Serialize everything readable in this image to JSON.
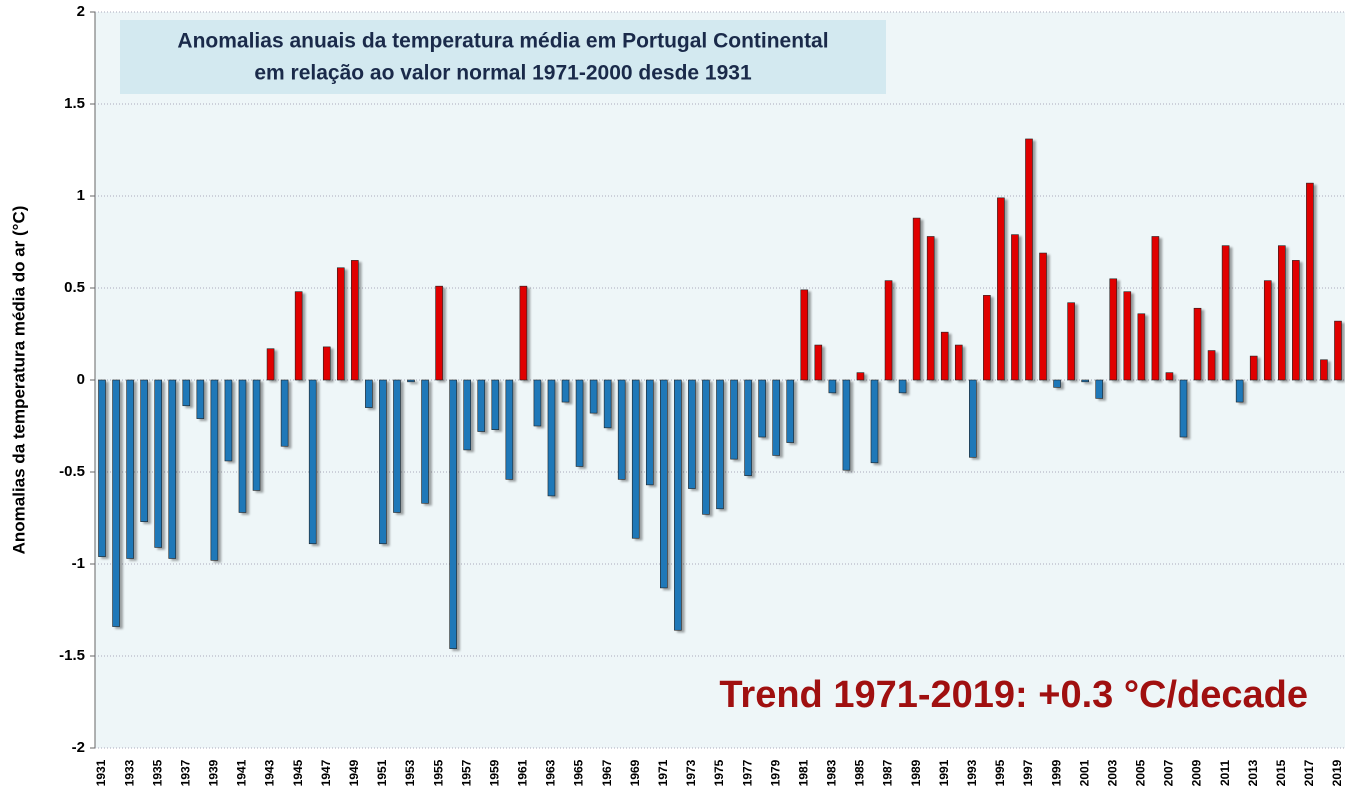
{
  "chart_data": {
    "type": "bar",
    "title": [
      "Anomalias anuais da temperatura média em Portugal Continental",
      "em relação ao valor normal 1971-2000 desde 1931"
    ],
    "y_label": "Anomalias da temperatura média do ar (°C)",
    "annotation": "Trend 1971-2019: +0.3 °C/decade",
    "categories": [
      "1931",
      null,
      "1933",
      null,
      "1935",
      null,
      "1937",
      null,
      "1939",
      null,
      "1941",
      null,
      "1943",
      null,
      "1945",
      null,
      "1947",
      null,
      "1949",
      null,
      "1951",
      null,
      "1953",
      null,
      "1955",
      null,
      "1957",
      null,
      "1959",
      null,
      "1961",
      null,
      "1963",
      null,
      "1965",
      null,
      "1967",
      null,
      "1969",
      null,
      "1971",
      null,
      "1973",
      null,
      "1975",
      null,
      "1977",
      null,
      "1979",
      null,
      "1981",
      null,
      "1983",
      null,
      "1985",
      null,
      "1987",
      null,
      "1989",
      null,
      "1991",
      null,
      "1993",
      null,
      "1995",
      null,
      "1997",
      null,
      "1999",
      null,
      "2001",
      null,
      "2003",
      null,
      "2005",
      null,
      "2007",
      null,
      "2009",
      null,
      "2011",
      null,
      "2013",
      null,
      "2015",
      null,
      "2017",
      null,
      "2019"
    ],
    "values": [
      -0.96,
      -1.34,
      -0.97,
      -0.77,
      -0.91,
      -0.97,
      -0.14,
      -0.21,
      -0.98,
      -0.44,
      -0.72,
      -0.6,
      0.17,
      -0.36,
      0.48,
      -0.89,
      0.18,
      0.61,
      0.65,
      -0.15,
      -0.89,
      -0.72,
      -0.01,
      -0.67,
      0.51,
      -1.46,
      -0.38,
      -0.28,
      -0.27,
      -0.54,
      0.51,
      -0.25,
      -0.63,
      -0.12,
      -0.47,
      -0.18,
      -0.26,
      -0.54,
      -0.86,
      -0.57,
      -1.13,
      -1.36,
      -0.59,
      -0.73,
      -0.7,
      -0.43,
      -0.52,
      -0.31,
      -0.41,
      -0.34,
      0.49,
      0.19,
      -0.07,
      -0.49,
      0.04,
      -0.45,
      0.54,
      -0.07,
      0.88,
      0.78,
      0.26,
      0.19,
      -0.42,
      0.46,
      0.99,
      0.79,
      1.31,
      0.69,
      -0.04,
      0.42,
      -0.01,
      -0.1,
      0.55,
      0.48,
      0.36,
      0.78,
      0.04,
      -0.31,
      0.39,
      0.16,
      0.73,
      -0.12,
      0.13,
      0.54,
      0.73,
      0.65,
      1.07,
      0.11,
      0.32
    ],
    "positive_color": "#e00000",
    "negative_color": "#1f78b8",
    "ylim": [
      -2,
      2
    ],
    "yticks": [
      -2,
      -1.5,
      -1,
      -0.5,
      0,
      0.5,
      1,
      1.5,
      2
    ],
    "grid": true
  }
}
